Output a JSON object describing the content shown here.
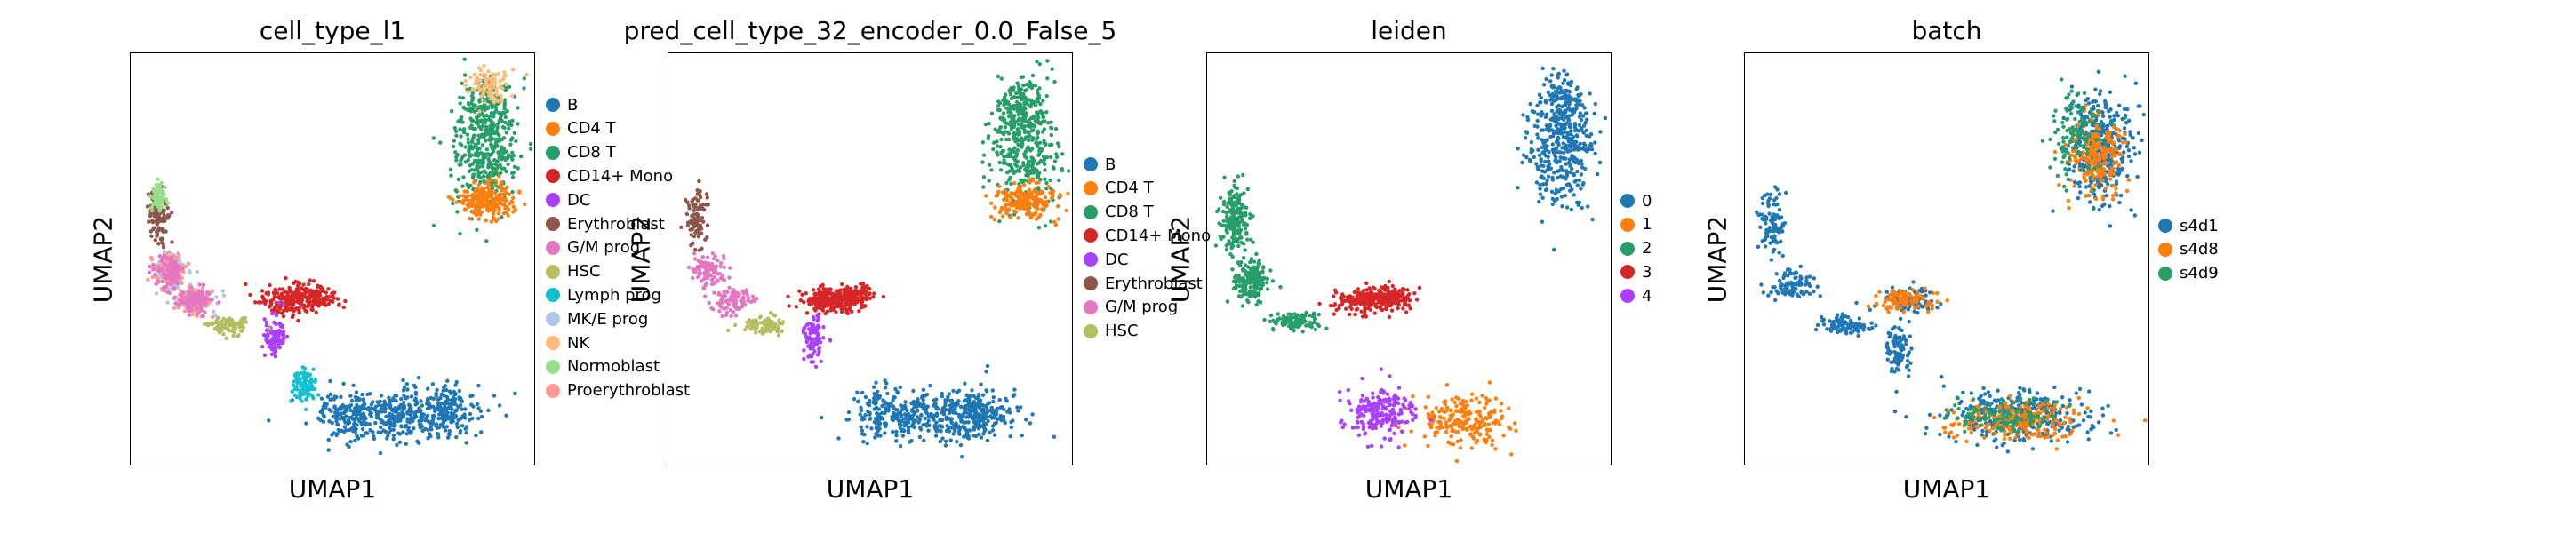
{
  "colors": {
    "B": "#1f77b4",
    "CD4 T": "#ff7f0e",
    "CD8 T": "#279e68",
    "CD14+ Mono": "#d62728",
    "DC": "#aa40fc",
    "Erythroblast": "#8c564b",
    "G/M prog": "#e377c2",
    "HSC": "#b5bd61",
    "Lymph prog": "#17becf",
    "MK/E prog": "#aec7e8",
    "NK": "#ffbb78",
    "Normoblast": "#98df8a",
    "Proerythroblast": "#ff9896",
    "0": "#1f77b4",
    "1": "#ff7f0e",
    "2": "#279e68",
    "3": "#d62728",
    "4": "#aa40fc",
    "s4d1": "#1f77b4",
    "s4d8": "#ff7f0e",
    "s4d9": "#279e68"
  },
  "chart_data": [
    {
      "type": "scatter",
      "title": "cell_type_l1",
      "xlabel": "UMAP1",
      "ylabel": "UMAP2",
      "legend_position": "right",
      "legend": [
        "B",
        "CD4 T",
        "CD8 T",
        "CD14+ Mono",
        "DC",
        "Erythroblast",
        "G/M prog",
        "HSC",
        "Lymph prog",
        "MK/E prog",
        "NK",
        "Normoblast",
        "Proerythroblast"
      ],
      "clusters": [
        {
          "category": "B",
          "region": "lower-right blob"
        },
        {
          "category": "CD8 T",
          "region": "upper-right blob"
        },
        {
          "category": "CD4 T",
          "region": "upper-right blob, lower edge"
        },
        {
          "category": "NK",
          "region": "upper-right blob, top tip"
        },
        {
          "category": "CD14+ Mono",
          "region": "center"
        },
        {
          "category": "DC",
          "region": "center, below monocytes"
        },
        {
          "category": "Lymph prog",
          "region": "left edge of B blob"
        },
        {
          "category": "HSC",
          "region": "bridge"
        },
        {
          "category": "MK/E prog",
          "region": "left trajectory"
        },
        {
          "category": "Proerythroblast",
          "region": "left trajectory"
        },
        {
          "category": "G/M prog",
          "region": "left trajectory"
        },
        {
          "category": "Erythroblast",
          "region": "upper-left arm"
        },
        {
          "category": "Normoblast",
          "region": "upper-left tip"
        }
      ]
    },
    {
      "type": "scatter",
      "title": "pred_cell_type_32_encoder_0.0_False_5",
      "xlabel": "UMAP1",
      "ylabel": "UMAP2",
      "legend_position": "right",
      "legend": [
        "B",
        "CD4 T",
        "CD8 T",
        "CD14+ Mono",
        "DC",
        "Erythroblast",
        "G/M prog",
        "HSC"
      ],
      "clusters": [
        {
          "category": "B",
          "region": "lower-right blob"
        },
        {
          "category": "CD8 T",
          "region": "upper-right blob"
        },
        {
          "category": "CD4 T",
          "region": "upper-right blob, lower edge"
        },
        {
          "category": "CD14+ Mono",
          "region": "center"
        },
        {
          "category": "DC",
          "region": "center, below monocytes"
        },
        {
          "category": "HSC",
          "region": "bridge"
        },
        {
          "category": "G/M prog",
          "region": "left trajectory"
        },
        {
          "category": "Erythroblast",
          "region": "upper-left arm"
        }
      ]
    },
    {
      "type": "scatter",
      "title": "leiden",
      "xlabel": "UMAP1",
      "ylabel": "UMAP2",
      "legend_position": "right",
      "legend": [
        "0",
        "1",
        "2",
        "3",
        "4"
      ],
      "clusters": [
        {
          "category": "0",
          "region": "upper-right blob"
        },
        {
          "category": "1",
          "region": "lower-right"
        },
        {
          "category": "2",
          "region": "left arm and bridge"
        },
        {
          "category": "3",
          "region": "center"
        },
        {
          "category": "4",
          "region": "lower-center"
        }
      ]
    },
    {
      "type": "scatter",
      "title": "batch",
      "xlabel": "UMAP1",
      "ylabel": "UMAP2",
      "legend_position": "right",
      "legend": [
        "s4d1",
        "s4d8",
        "s4d9"
      ],
      "clusters": [
        {
          "category": "s4d1",
          "region": "all regions"
        },
        {
          "category": "s4d8",
          "region": "mixed throughout"
        },
        {
          "category": "s4d9",
          "region": "sparse"
        }
      ]
    }
  ]
}
